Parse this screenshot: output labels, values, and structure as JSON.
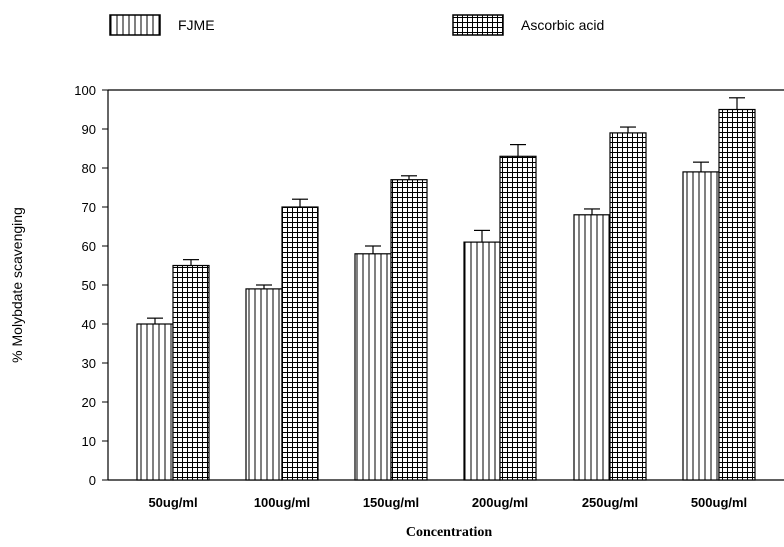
{
  "chart_data": {
    "type": "bar",
    "title": "",
    "xlabel": "Concentration",
    "ylabel": "% Molybdate scavenging",
    "categories": [
      "50ug/ml",
      "100ug/ml",
      "150ug/ml",
      "200ug/ml",
      "250ug/ml",
      "500ug/ml"
    ],
    "series": [
      {
        "name": "FJME",
        "pattern": "vertical-lines",
        "values": [
          40,
          49,
          58,
          61,
          68,
          79
        ],
        "errors": [
          1.5,
          1,
          2,
          3,
          1.5,
          2.5
        ]
      },
      {
        "name": "Ascorbic acid",
        "pattern": "grid",
        "values": [
          55,
          70,
          77,
          83,
          89,
          95
        ],
        "errors": [
          1.5,
          2,
          1,
          3,
          1.5,
          3
        ]
      }
    ],
    "ylim": [
      0,
      100
    ],
    "yticks": [
      0,
      10,
      20,
      30,
      40,
      50,
      60,
      70,
      80,
      90,
      100
    ],
    "grid": false,
    "legend_position": "top",
    "colors": {
      "bar_fill": "#ffffff",
      "stroke": "#000000"
    }
  }
}
